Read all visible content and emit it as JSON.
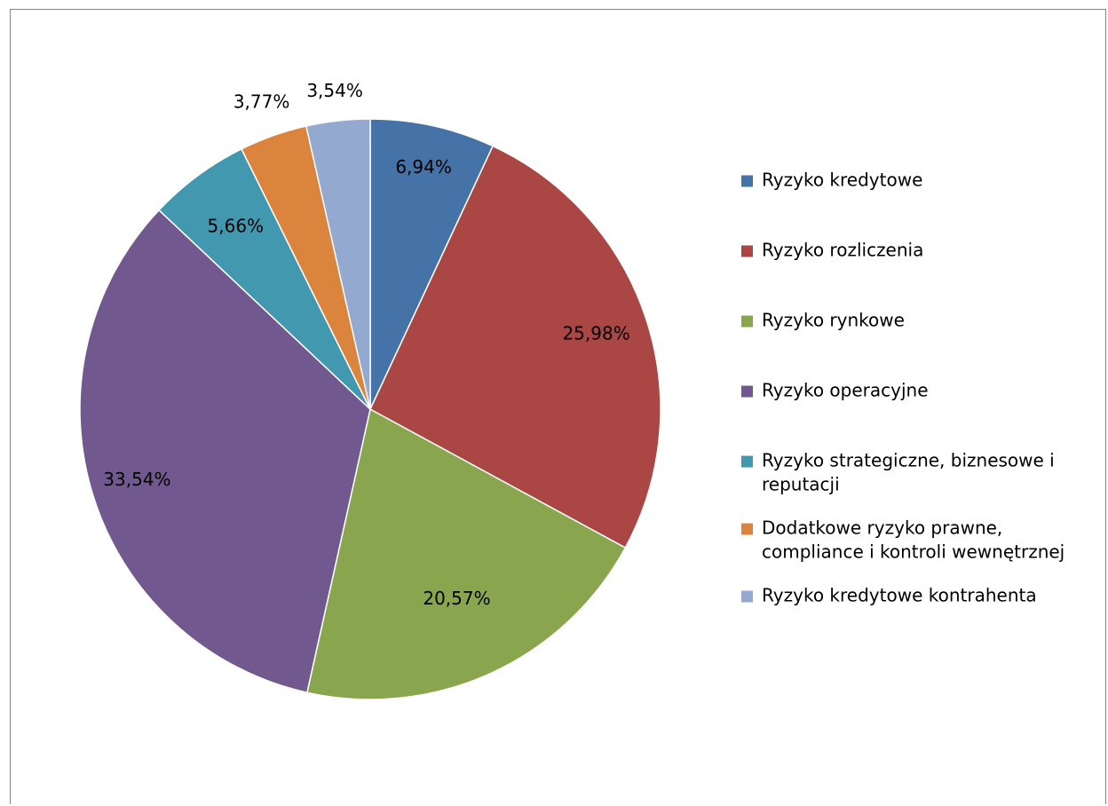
{
  "chart_data": {
    "type": "pie",
    "title": "",
    "legend_position": "right",
    "slices": [
      {
        "name": "Ryzyko kredytowe",
        "value": 6.94,
        "label": "6,94%",
        "color": "#4572A7",
        "legend_lines": [
          "Ryzyko kredytowe"
        ]
      },
      {
        "name": "Ryzyko rozliczenia",
        "value": 25.98,
        "label": "25,98%",
        "color": "#AA4643",
        "legend_lines": [
          "Ryzyko rozliczenia"
        ]
      },
      {
        "name": "Ryzyko rynkowe",
        "value": 20.57,
        "label": "20,57%",
        "color": "#89A54E",
        "legend_lines": [
          "Ryzyko rynkowe"
        ]
      },
      {
        "name": "Ryzyko operacyjne",
        "value": 33.54,
        "label": "33,54%",
        "color": "#71588F",
        "legend_lines": [
          "Ryzyko operacyjne"
        ]
      },
      {
        "name": "Ryzyko strategiczne, biznesowe i reputacji",
        "value": 5.66,
        "label": "5,66%",
        "color": "#4198AF",
        "legend_lines": [
          "Ryzyko strategiczne, biznesowe i",
          "reputacji"
        ]
      },
      {
        "name": "Dodatkowe ryzyko prawne, compliance i kontroli wewnętrznej",
        "value": 3.77,
        "label": "3,77%",
        "color": "#DB843D",
        "legend_lines": [
          "Dodatkowe ryzyko prawne,",
          "compliance i kontroli wewnętrznej"
        ]
      },
      {
        "name": "Ryzyko kredytowe kontrahenta",
        "value": 3.54,
        "label": "3,54%",
        "color": "#93A9CF",
        "legend_lines": [
          "Ryzyko kredytowe kontrahenta"
        ]
      }
    ]
  }
}
